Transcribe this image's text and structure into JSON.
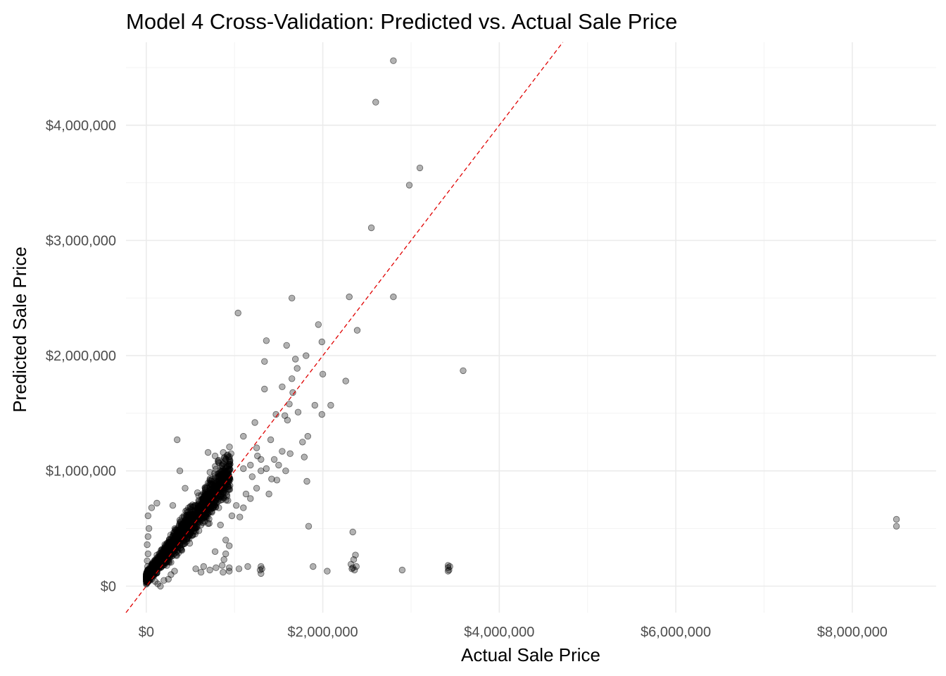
{
  "chart_data": {
    "type": "scatter",
    "title": "Model 4 Cross-Validation: Predicted vs. Actual Sale Price",
    "xlabel": "Actual Sale Price",
    "ylabel": "Predicted Sale Price",
    "xlim": [
      -230000,
      8950000
    ],
    "ylim": [
      -230000,
      4720000
    ],
    "x_ticks": [
      0,
      2000000,
      4000000,
      6000000,
      8000000
    ],
    "x_tick_labels": [
      "$0",
      "$2,000,000",
      "$4,000,000",
      "$6,000,000",
      "$8,000,000"
    ],
    "y_ticks": [
      0,
      1000000,
      2000000,
      3000000,
      4000000
    ],
    "y_tick_labels": [
      "$0",
      "$1,000,000",
      "$2,000,000",
      "$3,000,000",
      "$4,000,000"
    ],
    "reference_line": {
      "label": "y = x",
      "color": "#e00000",
      "style": "dashed"
    },
    "point_color": "#000000",
    "point_alpha": 0.3,
    "cluster": {
      "description": "dense mass of points along the diagonal",
      "x_range": [
        0,
        1000000
      ],
      "approx_count": 1800,
      "seed": 7
    },
    "points": [
      [
        2800000,
        4560000
      ],
      [
        2600000,
        4200000
      ],
      [
        3100000,
        3630000
      ],
      [
        2980000,
        3480000
      ],
      [
        2550000,
        3110000
      ],
      [
        2800000,
        2510000
      ],
      [
        2300000,
        2510000
      ],
      [
        1650000,
        2500000
      ],
      [
        1040000,
        2370000
      ],
      [
        1950000,
        2270000
      ],
      [
        2390000,
        2220000
      ],
      [
        1360000,
        2130000
      ],
      [
        1590000,
        2090000
      ],
      [
        1990000,
        2120000
      ],
      [
        1810000,
        2000000
      ],
      [
        1710000,
        1890000
      ],
      [
        1340000,
        1950000
      ],
      [
        2000000,
        1840000
      ],
      [
        1540000,
        1730000
      ],
      [
        1340000,
        1710000
      ],
      [
        1660000,
        1680000
      ],
      [
        1620000,
        1580000
      ],
      [
        1910000,
        1570000
      ],
      [
        2090000,
        1570000
      ],
      [
        1990000,
        1490000
      ],
      [
        1570000,
        1480000
      ],
      [
        1470000,
        1490000
      ],
      [
        1720000,
        1510000
      ],
      [
        1600000,
        1440000
      ],
      [
        2260000,
        1780000
      ],
      [
        1690000,
        1970000
      ],
      [
        1650000,
        1800000
      ],
      [
        3590000,
        1870000
      ],
      [
        1230000,
        1420000
      ],
      [
        1830000,
        1300000
      ],
      [
        1770000,
        1250000
      ],
      [
        1410000,
        1270000
      ],
      [
        1540000,
        1170000
      ],
      [
        1630000,
        1150000
      ],
      [
        1790000,
        1120000
      ],
      [
        1300000,
        1000000
      ],
      [
        1500000,
        1050000
      ],
      [
        1100000,
        1300000
      ],
      [
        1250000,
        1200000
      ],
      [
        1420000,
        930000
      ],
      [
        1580000,
        1000000
      ],
      [
        1820000,
        910000
      ],
      [
        1390000,
        800000
      ],
      [
        1250000,
        850000
      ],
      [
        1130000,
        800000
      ],
      [
        1840000,
        520000
      ],
      [
        350000,
        1270000
      ],
      [
        2340000,
        470000
      ],
      [
        8500000,
        580000
      ],
      [
        8500000,
        520000
      ],
      [
        2370000,
        270000
      ],
      [
        2350000,
        230000
      ],
      [
        2320000,
        190000
      ],
      [
        2360000,
        140000
      ],
      [
        2380000,
        170000
      ],
      [
        2340000,
        160000
      ],
      [
        2330000,
        150000
      ],
      [
        3420000,
        180000
      ],
      [
        3420000,
        160000
      ],
      [
        3430000,
        140000
      ],
      [
        3420000,
        130000
      ],
      [
        3440000,
        170000
      ],
      [
        2900000,
        140000
      ],
      [
        1890000,
        170000
      ],
      [
        2050000,
        130000
      ],
      [
        1300000,
        170000
      ],
      [
        1290000,
        140000
      ],
      [
        1300000,
        110000
      ],
      [
        1310000,
        150000
      ],
      [
        1150000,
        170000
      ],
      [
        1050000,
        150000
      ],
      [
        940000,
        160000
      ],
      [
        940000,
        130000
      ],
      [
        860000,
        180000
      ],
      [
        870000,
        120000
      ],
      [
        790000,
        160000
      ],
      [
        720000,
        140000
      ],
      [
        650000,
        170000
      ],
      [
        620000,
        120000
      ],
      [
        560000,
        150000
      ],
      [
        900000,
        280000
      ],
      [
        880000,
        230000
      ],
      [
        940000,
        350000
      ],
      [
        900000,
        400000
      ],
      [
        780000,
        300000
      ],
      [
        840000,
        530000
      ],
      [
        970000,
        610000
      ],
      [
        1020000,
        700000
      ],
      [
        1100000,
        680000
      ],
      [
        1180000,
        760000
      ],
      [
        1060000,
        600000
      ],
      [
        1200000,
        950000
      ],
      [
        1300000,
        1100000
      ],
      [
        1180000,
        1050000
      ],
      [
        1260000,
        1130000
      ],
      [
        1360000,
        1020000
      ],
      [
        1450000,
        1100000
      ],
      [
        1480000,
        920000
      ],
      [
        1100000,
        1020000
      ],
      [
        960000,
        1150000
      ],
      [
        900000,
        1100000
      ],
      [
        860000,
        1050000
      ],
      [
        780000,
        1130000
      ],
      [
        700000,
        1160000
      ],
      [
        380000,
        1000000
      ],
      [
        440000,
        850000
      ],
      [
        300000,
        700000
      ],
      [
        120000,
        720000
      ],
      [
        60000,
        680000
      ],
      [
        20000,
        610000
      ],
      [
        30000,
        500000
      ],
      [
        20000,
        430000
      ],
      [
        10000,
        360000
      ],
      [
        20000,
        280000
      ],
      [
        10000,
        220000
      ],
      [
        15000,
        170000
      ],
      [
        20000,
        120000
      ],
      [
        30000,
        80000
      ],
      [
        40000,
        50000
      ],
      [
        60000,
        60000
      ],
      [
        100000,
        40000
      ],
      [
        130000,
        20000
      ],
      [
        160000,
        0
      ],
      [
        200000,
        50000
      ],
      [
        250000,
        60000
      ],
      [
        280000,
        100000
      ],
      [
        320000,
        130000
      ]
    ]
  }
}
